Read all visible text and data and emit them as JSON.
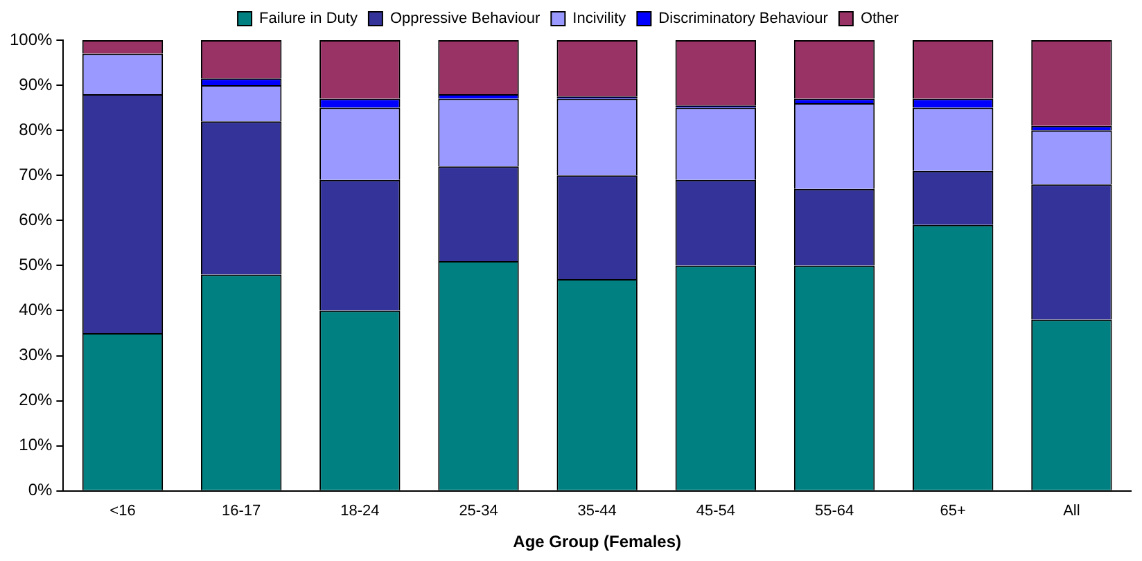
{
  "chart_data": {
    "type": "bar",
    "stacked": true,
    "xlabel": "Age Group (Females)",
    "categories": [
      "<16",
      "16-17",
      "18-24",
      "25-34",
      "35-44",
      "45-54",
      "55-64",
      "65+",
      "All"
    ],
    "series": [
      {
        "name": "Failure in Duty",
        "color": "#008080",
        "values": [
          35,
          48,
          40,
          51,
          47,
          50,
          50,
          59,
          38
        ]
      },
      {
        "name": "Oppressive Behaviour",
        "color": "#333399",
        "values": [
          53,
          34,
          29,
          21,
          23,
          19,
          17,
          12,
          30
        ]
      },
      {
        "name": "Incivility",
        "color": "#9999ff",
        "values": [
          9,
          8,
          16,
          15,
          17,
          16,
          19,
          14,
          12
        ]
      },
      {
        "name": "Discriminatory Behaviour",
        "color": "#0000ff",
        "values": [
          0,
          1.5,
          2,
          1,
          0.5,
          0.5,
          1,
          2,
          1
        ]
      },
      {
        "name": "Other",
        "color": "#993366",
        "values": [
          3,
          8.5,
          13,
          12,
          12.5,
          14.5,
          13,
          13,
          19
        ]
      }
    ],
    "ylim": [
      0,
      100
    ],
    "yticks": [
      {
        "value": 0,
        "label": "0%"
      },
      {
        "value": 10,
        "label": "10%"
      },
      {
        "value": 20,
        "label": "20%"
      },
      {
        "value": 30,
        "label": "30%"
      },
      {
        "value": 40,
        "label": "40%"
      },
      {
        "value": 50,
        "label": "50%"
      },
      {
        "value": 60,
        "label": "60%"
      },
      {
        "value": 70,
        "label": "70%"
      },
      {
        "value": 80,
        "label": "80%"
      },
      {
        "value": 90,
        "label": "90%"
      },
      {
        "value": 100,
        "label": "100%"
      }
    ],
    "legend": "top",
    "grid": false
  }
}
